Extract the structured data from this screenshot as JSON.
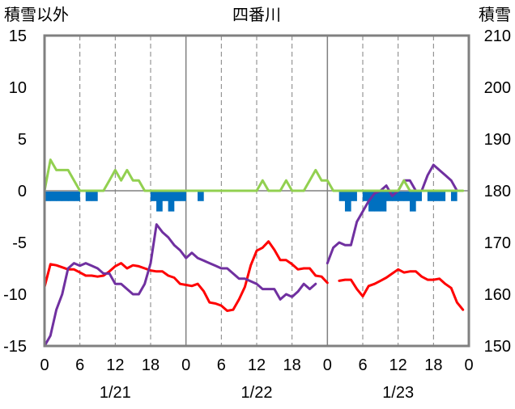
{
  "chart_data": {
    "type": "line",
    "title": "四番川",
    "left_axis_label": "積雪以外",
    "right_axis_label": "積雪",
    "left_ylim": [
      -15,
      15
    ],
    "left_ticks": [
      "15",
      "10",
      "5",
      "0",
      "-5",
      "-10",
      "-15"
    ],
    "right_ylim": [
      150,
      210
    ],
    "right_ticks": [
      "210",
      "200",
      "190",
      "180",
      "170",
      "160",
      "150"
    ],
    "xlim": [
      0,
      72
    ],
    "x_ticks": [
      "0",
      "6",
      "12",
      "18",
      "0",
      "6",
      "12",
      "18",
      "0",
      "6",
      "12",
      "18",
      "0"
    ],
    "day_labels": [
      "1/21",
      "1/22",
      "1/23"
    ],
    "grid": "vertical dashed every 6 h, solid day boundaries",
    "colors": {
      "temperature": "#ff0000",
      "snow_depth": "#7030a0",
      "snowfall": "#92d050",
      "precipitation": "#0070c0",
      "frame": "#808080"
    },
    "series": [
      {
        "axis": "left",
        "style": "line",
        "color": "#ff0000",
        "points": [
          [
            0,
            -9.3
          ],
          [
            1,
            -7.1
          ],
          [
            2,
            -7.2
          ],
          [
            3,
            -7.4
          ],
          [
            4,
            -7.6
          ],
          [
            5,
            -7.6
          ],
          [
            6,
            -7.9
          ],
          [
            7,
            -8.2
          ],
          [
            8,
            -8.2
          ],
          [
            9,
            -8.3
          ],
          [
            10,
            -8.2
          ],
          [
            11,
            -7.8
          ],
          [
            12,
            -7.3
          ],
          [
            13,
            -7.0
          ],
          [
            14,
            -7.5
          ],
          [
            15,
            -7.2
          ],
          [
            16,
            -7.3
          ],
          [
            17,
            -7.5
          ],
          [
            18,
            -7.7
          ],
          [
            19,
            -7.8
          ],
          [
            20,
            -7.8
          ],
          [
            21,
            -8.2
          ],
          [
            22,
            -8.4
          ],
          [
            23,
            -9.0
          ],
          [
            24,
            -9.1
          ],
          [
            25,
            -9.2
          ],
          [
            26,
            -9.0
          ],
          [
            27,
            -9.7
          ],
          [
            28,
            -10.8
          ],
          [
            29,
            -10.9
          ],
          [
            30,
            -11.1
          ],
          [
            31,
            -11.6
          ],
          [
            32,
            -11.5
          ],
          [
            33,
            -10.5
          ],
          [
            34,
            -9.3
          ],
          [
            35,
            -7.2
          ],
          [
            36,
            -5.8
          ],
          [
            37,
            -5.5
          ],
          [
            38,
            -4.9
          ],
          [
            39,
            -5.7
          ],
          [
            40,
            -6.7
          ],
          [
            41,
            -6.7
          ],
          [
            42,
            -7.1
          ],
          [
            43,
            -7.6
          ],
          [
            44,
            -7.5
          ],
          [
            45,
            -7.5
          ],
          [
            46,
            -8.2
          ],
          [
            47,
            -8.3
          ],
          [
            48,
            -8.9
          ],
          null,
          [
            50,
            -8.7
          ],
          [
            51,
            -8.6
          ],
          [
            52,
            -8.6
          ],
          [
            53,
            -9.5
          ],
          [
            54,
            -10.2
          ],
          [
            55,
            -9.2
          ],
          [
            56,
            -9.0
          ],
          [
            57,
            -8.7
          ],
          [
            58,
            -8.4
          ],
          [
            59,
            -8.0
          ],
          [
            60,
            -7.6
          ],
          [
            61,
            -7.9
          ],
          [
            62,
            -7.8
          ],
          [
            63,
            -7.8
          ],
          [
            64,
            -8.3
          ],
          [
            65,
            -8.6
          ],
          [
            66,
            -8.6
          ],
          [
            67,
            -8.5
          ],
          [
            68,
            -9.0
          ],
          [
            69,
            -9.4
          ],
          [
            70,
            -10.8
          ],
          [
            71,
            -11.5
          ]
        ]
      },
      {
        "axis": "right",
        "style": "line",
        "color": "#7030a0",
        "points": [
          [
            0,
            150
          ],
          [
            1,
            152
          ],
          [
            2,
            157
          ],
          [
            3,
            160
          ],
          [
            4,
            165
          ],
          [
            5,
            166
          ],
          [
            6,
            165.5
          ],
          [
            7,
            166
          ],
          [
            8,
            165.5
          ],
          [
            9,
            165
          ],
          [
            10,
            164
          ],
          [
            11,
            164
          ],
          [
            12,
            162
          ],
          [
            13,
            162
          ],
          [
            14,
            161
          ],
          [
            15,
            160
          ],
          [
            16,
            160
          ],
          [
            17,
            162
          ],
          [
            18,
            166
          ],
          [
            19,
            173.5
          ],
          [
            20,
            172
          ],
          [
            21,
            171
          ],
          [
            22,
            169.5
          ],
          [
            23,
            168.5
          ],
          [
            24,
            167
          ],
          [
            25,
            168
          ],
          [
            26,
            167
          ],
          [
            27,
            166.5
          ],
          [
            28,
            166
          ],
          [
            29,
            165.5
          ],
          [
            30,
            165
          ],
          [
            31,
            165
          ],
          [
            32,
            164
          ],
          [
            33,
            163
          ],
          [
            34,
            163
          ],
          [
            35,
            162.5
          ],
          [
            36,
            162
          ],
          [
            37,
            161
          ],
          [
            38,
            161
          ],
          [
            39,
            161
          ],
          [
            40,
            159
          ],
          [
            41,
            160
          ],
          [
            42,
            159.5
          ],
          [
            43,
            160.5
          ],
          [
            44,
            162
          ],
          [
            45,
            161
          ],
          [
            46,
            162
          ],
          null,
          [
            48,
            166
          ],
          [
            49,
            169
          ],
          [
            50,
            170
          ],
          [
            51,
            169.5
          ],
          [
            52,
            169.5
          ],
          [
            53,
            174
          ],
          [
            54,
            176
          ],
          [
            55,
            178
          ],
          [
            56,
            179.5
          ],
          [
            57,
            180
          ],
          [
            58,
            181
          ],
          [
            59,
            179
          ],
          [
            60,
            180
          ],
          [
            61,
            182
          ],
          [
            62,
            182
          ],
          [
            63,
            180
          ],
          [
            64,
            180
          ],
          [
            65,
            183
          ],
          [
            66,
            185
          ],
          [
            67,
            184
          ],
          [
            68,
            183
          ],
          [
            69,
            182
          ],
          [
            70,
            180
          ]
        ]
      },
      {
        "axis": "left",
        "style": "line",
        "color": "#92d050",
        "points": [
          [
            0,
            0
          ],
          [
            1,
            3
          ],
          [
            2,
            2
          ],
          [
            3,
            2
          ],
          [
            4,
            2
          ],
          [
            5,
            1
          ],
          [
            6,
            0
          ],
          [
            7,
            0
          ],
          [
            8,
            0
          ],
          [
            9,
            0
          ],
          [
            10,
            0
          ],
          [
            11,
            1
          ],
          [
            12,
            2
          ],
          [
            13,
            1
          ],
          [
            14,
            2
          ],
          [
            15,
            1
          ],
          [
            16,
            1
          ],
          [
            17,
            0
          ],
          [
            18,
            0
          ],
          [
            19,
            0
          ],
          [
            20,
            0
          ],
          [
            21,
            0
          ],
          [
            22,
            0
          ],
          [
            23,
            0
          ],
          [
            24,
            0
          ],
          [
            25,
            0
          ],
          [
            26,
            0
          ],
          [
            27,
            0
          ],
          [
            28,
            0
          ],
          [
            29,
            0
          ],
          [
            30,
            0
          ],
          [
            31,
            0
          ],
          [
            32,
            0
          ],
          [
            33,
            0
          ],
          [
            34,
            0
          ],
          [
            35,
            0
          ],
          [
            36,
            0
          ],
          [
            37,
            1
          ],
          [
            38,
            0
          ],
          [
            39,
            0
          ],
          [
            40,
            0
          ],
          [
            41,
            1
          ],
          [
            42,
            0
          ],
          [
            43,
            0
          ],
          [
            44,
            0
          ],
          [
            45,
            1
          ],
          [
            46,
            2
          ],
          [
            47,
            1
          ],
          [
            48,
            1
          ],
          [
            49,
            0
          ],
          [
            50,
            0
          ],
          [
            51,
            0
          ],
          [
            52,
            0
          ],
          [
            53,
            0
          ],
          [
            54,
            0
          ],
          [
            55,
            0
          ],
          [
            56,
            0
          ],
          [
            57,
            0
          ],
          [
            58,
            0
          ],
          [
            59,
            0
          ],
          [
            60,
            0
          ],
          [
            61,
            1
          ],
          [
            62,
            0
          ],
          [
            63,
            0
          ],
          [
            64,
            0
          ],
          [
            65,
            0
          ],
          [
            66,
            0
          ],
          [
            67,
            0
          ],
          [
            68,
            0
          ],
          [
            69,
            0
          ],
          [
            70,
            0
          ],
          [
            71,
            0
          ]
        ]
      },
      {
        "axis": "left",
        "style": "bar",
        "color": "#0070c0",
        "points": [
          [
            0,
            -1
          ],
          [
            1,
            -1
          ],
          [
            2,
            -1
          ],
          [
            3,
            -1
          ],
          [
            4,
            -1
          ],
          [
            5,
            -1
          ],
          [
            7,
            -1
          ],
          [
            8,
            -1
          ],
          [
            18,
            -1
          ],
          [
            19,
            -2
          ],
          [
            20,
            -1
          ],
          [
            21,
            -2
          ],
          [
            22,
            -1
          ],
          [
            23,
            -1
          ],
          [
            26,
            -1
          ],
          [
            50,
            -1
          ],
          [
            51,
            -2
          ],
          [
            52,
            -1
          ],
          [
            54,
            -1
          ],
          [
            55,
            -2
          ],
          [
            56,
            -2
          ],
          [
            57,
            -2
          ],
          [
            58,
            -1
          ],
          [
            59,
            -1
          ],
          [
            60,
            -1
          ],
          [
            61,
            -1
          ],
          [
            62,
            -2
          ],
          [
            63,
            -1
          ],
          [
            65,
            -1
          ],
          [
            66,
            -1
          ],
          [
            67,
            -1
          ],
          [
            69,
            -1
          ]
        ]
      }
    ]
  }
}
